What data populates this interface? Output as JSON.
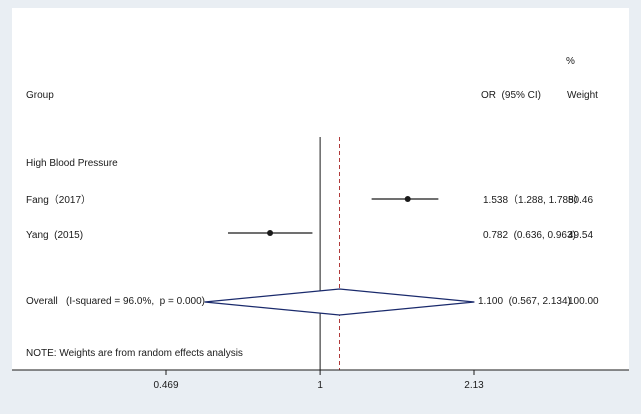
{
  "chart_data": {
    "type": "forest",
    "title": "",
    "xlabel": "",
    "ylabel": "",
    "x_scale": "log",
    "xlim": [
      0.469,
      2.13
    ],
    "x_ticks": [
      "0.469",
      "1",
      "2.13"
    ],
    "reference_line": 1,
    "overall_line": 1.1,
    "headers": {
      "group": "Group",
      "estimate": "OR  (95% CI)",
      "weight_top": "%",
      "weight": "Weight"
    },
    "subgroup_label": "High Blood Pressure",
    "studies": [
      {
        "label": "Fang（2017）",
        "or": 1.538,
        "lower": 1.288,
        "upper": 1.788,
        "ci_text": "1.538（1.288, 1.788）",
        "weight": "50.46"
      },
      {
        "label": "Yang  (2015)",
        "or": 0.782,
        "lower": 0.636,
        "upper": 0.963,
        "ci_text": "0.782  (0.636, 0.963)",
        "weight": "49.54"
      }
    ],
    "overall": {
      "label": "Overall   (I-squared = 96.0%,  p = 0.000)",
      "or": 1.1,
      "lower": 0.567,
      "upper": 2.134,
      "ci_text": "1.100  (0.567, 2.134)",
      "weight": "100.00"
    },
    "note": "NOTE: Weights are from random effects analysis"
  },
  "colors": {
    "background": "#e9eef3",
    "panel": "#ffffff",
    "diamond": "#1a2a6c",
    "overall_line": "#b03a3a",
    "text": "#1a1a1a"
  }
}
